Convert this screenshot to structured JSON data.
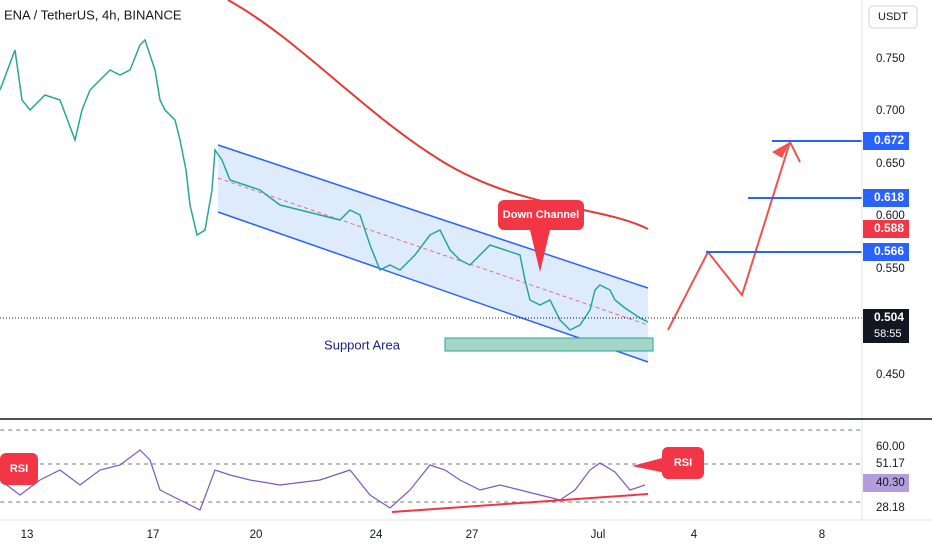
{
  "header": {
    "symbol": "ENA / TetherUS, 4h, BINANCE",
    "currency": "USDT"
  },
  "price_axis": [
    "0.750",
    "0.700",
    "0.650",
    "0.600",
    "0.550",
    "0.450"
  ],
  "price_tags": [
    "0.672",
    "0.618",
    "0.588",
    "0.566",
    "0.504",
    "58:55"
  ],
  "annotations": {
    "channel": "Down Channel",
    "support": "Support Area",
    "rsi_left": "RSI",
    "rsi_right": "RSI"
  },
  "rsi_axis": [
    "60.00",
    "51.17",
    "40.30",
    "28.18"
  ],
  "time_axis": [
    "13",
    "17",
    "20",
    "24",
    "27",
    "Jul",
    "4",
    "8"
  ]
}
